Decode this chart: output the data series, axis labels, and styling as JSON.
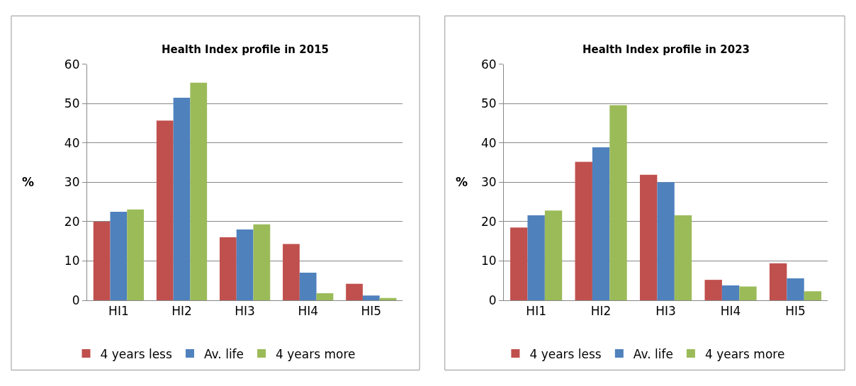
{
  "chart_data": [
    {
      "type": "bar",
      "title": "Health Index profile in 2015",
      "ylabel": "%",
      "categories": [
        "HI1",
        "HI2",
        "HI3",
        "HI4",
        "HI5"
      ],
      "ylim": [
        0,
        60
      ],
      "yticks": [
        0,
        10,
        20,
        30,
        40,
        50,
        60
      ],
      "grid": "y",
      "legend": "bottom",
      "series": [
        {
          "name": "4 years less",
          "color": "#c0504d",
          "values": [
            20.0,
            45.7,
            16.0,
            14.3,
            4.2
          ]
        },
        {
          "name": "Av. life",
          "color": "#4f81bd",
          "values": [
            22.5,
            51.5,
            18.0,
            7.0,
            1.2
          ]
        },
        {
          "name": "4 years more",
          "color": "#9bbb59",
          "values": [
            23.1,
            55.3,
            19.3,
            1.8,
            0.6
          ]
        }
      ]
    },
    {
      "type": "bar",
      "title": "Health Index profile in 2023",
      "ylabel": "%",
      "categories": [
        "HI1",
        "HI2",
        "HI3",
        "HI4",
        "HI5"
      ],
      "ylim": [
        0,
        60
      ],
      "yticks": [
        0,
        10,
        20,
        30,
        40,
        50,
        60
      ],
      "grid": "y",
      "legend": "bottom",
      "series": [
        {
          "name": "4 years less",
          "color": "#c0504d",
          "values": [
            18.5,
            35.2,
            31.9,
            5.2,
            9.4
          ]
        },
        {
          "name": "Av. life",
          "color": "#4f81bd",
          "values": [
            21.6,
            38.9,
            30.0,
            3.8,
            5.6
          ]
        },
        {
          "name": "4 years more",
          "color": "#9bbb59",
          "values": [
            22.8,
            49.6,
            21.6,
            3.5,
            2.3
          ]
        }
      ]
    }
  ]
}
